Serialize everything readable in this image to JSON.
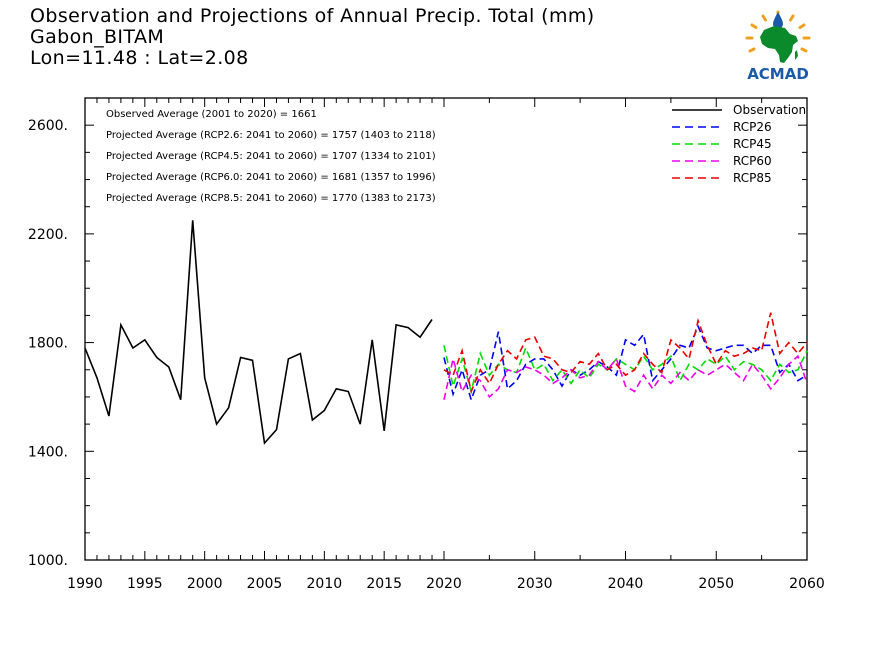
{
  "title_lines": [
    "Observation and Projections of Annual Precip. Total (mm)",
    "Gabon_BITAM",
    "Lon=11.48 : Lat=2.08"
  ],
  "logo_text": "ACMAD",
  "colors": {
    "observation": "#000000",
    "rcp26": "#0000ff",
    "rcp45": "#00dd00",
    "rcp60": "#ee00ee",
    "rcp85": "#ee0000",
    "logo_green": "#0a8a2a",
    "logo_blue": "#1a5aa8",
    "logo_sun": "#f0a020"
  },
  "chart_data": {
    "type": "line",
    "title": "Observation and Projections of Annual Precip. Total (mm)",
    "subtitle": "Gabon_BITAM, Lon=11.48 : Lat=2.08",
    "xlabel": "",
    "ylabel": "",
    "xlim": [
      1990,
      2060
    ],
    "ylim": [
      1000,
      2700
    ],
    "y_ticks": [
      1000,
      1400,
      1800,
      2200,
      2600
    ],
    "y_tick_labels": [
      "1000.",
      "1400.",
      "1800.",
      "2200.",
      "2600."
    ],
    "x_ticks_dense": [
      1990,
      1995,
      2000,
      2005,
      2010,
      2015,
      2020
    ],
    "x_ticks_sparse": [
      2030,
      2040,
      2050,
      2060
    ],
    "x_axis_break": 2020,
    "grid": false,
    "legend_position": "top-right",
    "annotations": [
      "Observed Average (2001 to 2020) = 1661",
      "Projected Average (RCP2.6: 2041 to 2060) = 1757 (1403 to 2118)",
      "Projected Average (RCP4.5: 2041 to 2060) = 1707 (1334 to 2101)",
      "Projected Average (RCP6.0: 2041 to 2060) = 1681 (1357 to 1996)",
      "Projected Average (RCP8.5: 2041 to 2060) = 1770 (1383 to 2173)"
    ],
    "series": [
      {
        "name": "Observation",
        "color_key": "observation",
        "style": "solid",
        "x": [
          1990,
          1991,
          1992,
          1993,
          1994,
          1995,
          1996,
          1997,
          1998,
          1999,
          2000,
          2001,
          2002,
          2003,
          2004,
          2005,
          2006,
          2007,
          2008,
          2009,
          2010,
          2011,
          2012,
          2013,
          2014,
          2015,
          2016,
          2017,
          2018,
          2019,
          2020
        ],
        "values": [
          1780,
          1670,
          1530,
          1865,
          1780,
          1810,
          1745,
          1710,
          1590,
          2250,
          1670,
          1500,
          1560,
          1745,
          1735,
          1430,
          1480,
          1740,
          1760,
          1515,
          1550,
          1630,
          1620,
          1500,
          1810,
          1475,
          1865,
          1855,
          1820,
          1885,
          null
        ]
      },
      {
        "name": "RCP26",
        "color_key": "rcp26",
        "style": "dashed",
        "x": [
          2020,
          2021,
          2022,
          2023,
          2024,
          2025,
          2026,
          2027,
          2028,
          2029,
          2030,
          2031,
          2032,
          2033,
          2034,
          2035,
          2036,
          2037,
          2038,
          2039,
          2040,
          2041,
          2042,
          2043,
          2044,
          2045,
          2046,
          2047,
          2048,
          2049,
          2050,
          2051,
          2052,
          2053,
          2054,
          2055,
          2056,
          2057,
          2058,
          2059,
          2060
        ],
        "values": [
          1745,
          1610,
          1700,
          1590,
          1680,
          1700,
          1840,
          1630,
          1660,
          1720,
          1740,
          1740,
          1700,
          1640,
          1700,
          1680,
          1700,
          1730,
          1710,
          1680,
          1810,
          1790,
          1830,
          1660,
          1700,
          1740,
          1790,
          1780,
          1860,
          1780,
          1770,
          1780,
          1790,
          1790,
          1760,
          1790,
          1790,
          1690,
          1720,
          1660,
          1680
        ]
      },
      {
        "name": "RCP45",
        "color_key": "rcp45",
        "style": "dashed",
        "x": [
          2020,
          2021,
          2022,
          2023,
          2024,
          2025,
          2026,
          2027,
          2028,
          2029,
          2030,
          2031,
          2032,
          2033,
          2034,
          2035,
          2036,
          2037,
          2038,
          2039,
          2040,
          2041,
          2042,
          2043,
          2044,
          2045,
          2046,
          2047,
          2048,
          2049,
          2050,
          2051,
          2052,
          2053,
          2054,
          2055,
          2056,
          2057,
          2058,
          2059,
          2060
        ],
        "values": [
          1790,
          1640,
          1740,
          1620,
          1760,
          1680,
          1720,
          1700,
          1690,
          1780,
          1700,
          1720,
          1660,
          1700,
          1650,
          1700,
          1670,
          1720,
          1700,
          1740,
          1720,
          1700,
          1750,
          1700,
          1720,
          1750,
          1660,
          1720,
          1700,
          1740,
          1720,
          1750,
          1700,
          1730,
          1720,
          1700,
          1660,
          1720,
          1690,
          1700,
          1770
        ]
      },
      {
        "name": "RCP60",
        "color_key": "rcp60",
        "style": "dashed",
        "x": [
          2020,
          2021,
          2022,
          2023,
          2024,
          2025,
          2026,
          2027,
          2028,
          2029,
          2030,
          2031,
          2032,
          2033,
          2034,
          2035,
          2036,
          2037,
          2038,
          2039,
          2040,
          2041,
          2042,
          2043,
          2044,
          2045,
          2046,
          2047,
          2048,
          2049,
          2050,
          2051,
          2052,
          2053,
          2054,
          2055,
          2056,
          2057,
          2058,
          2059,
          2060
        ],
        "values": [
          1590,
          1740,
          1620,
          1680,
          1660,
          1600,
          1630,
          1700,
          1690,
          1710,
          1700,
          1680,
          1650,
          1670,
          1700,
          1670,
          1680,
          1730,
          1700,
          1740,
          1640,
          1620,
          1680,
          1630,
          1680,
          1650,
          1690,
          1660,
          1700,
          1680,
          1700,
          1720,
          1690,
          1660,
          1720,
          1680,
          1630,
          1670,
          1720,
          1750,
          1650
        ]
      },
      {
        "name": "RCP85",
        "color_key": "rcp85",
        "style": "dashed",
        "x": [
          2020,
          2021,
          2022,
          2023,
          2024,
          2025,
          2026,
          2027,
          2028,
          2029,
          2030,
          2031,
          2032,
          2033,
          2034,
          2035,
          2036,
          2037,
          2038,
          2039,
          2040,
          2041,
          2042,
          2043,
          2044,
          2045,
          2046,
          2047,
          2048,
          2049,
          2050,
          2051,
          2052,
          2053,
          2054,
          2055,
          2056,
          2057,
          2058,
          2059,
          2060
        ],
        "values": [
          1700,
          1680,
          1770,
          1620,
          1700,
          1650,
          1720,
          1770,
          1740,
          1810,
          1820,
          1750,
          1740,
          1700,
          1690,
          1730,
          1720,
          1760,
          1700,
          1720,
          1680,
          1700,
          1760,
          1720,
          1690,
          1810,
          1780,
          1740,
          1880,
          1790,
          1720,
          1770,
          1750,
          1760,
          1780,
          1770,
          1910,
          1760,
          1800,
          1760,
          1800
        ]
      }
    ]
  }
}
